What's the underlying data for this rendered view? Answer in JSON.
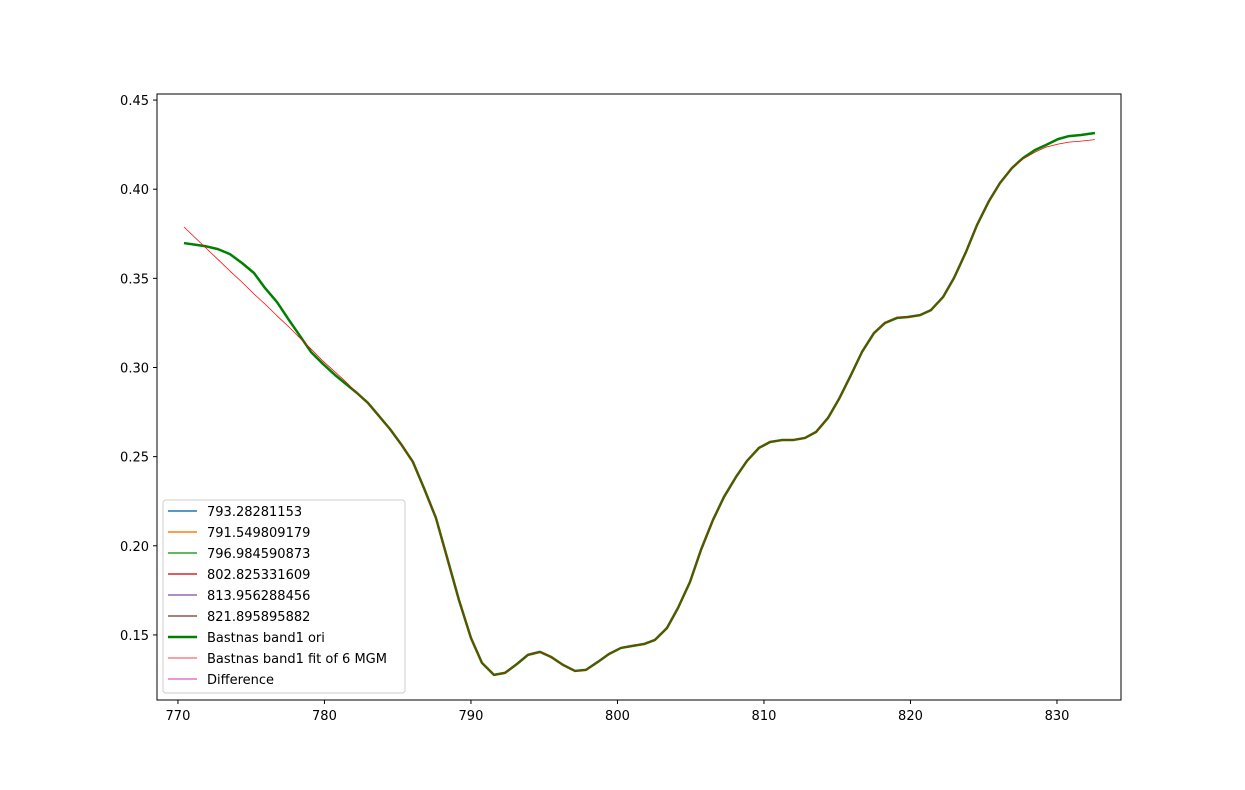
{
  "chart_data": {
    "type": "line",
    "x": [
      770.41,
      771.84,
      772.73,
      773.55,
      774.37,
      775.19,
      775.94,
      776.76,
      777.58,
      778.33,
      779.08,
      779.9,
      780.72,
      781.47,
      782.22,
      782.97,
      783.72,
      784.47,
      785.22,
      786.04,
      786.79,
      787.61,
      788.36,
      789.18,
      790.0,
      790.75,
      791.57,
      792.32,
      793.14,
      793.89,
      794.71,
      795.46,
      796.28,
      797.1,
      797.85,
      798.67,
      799.42,
      800.24,
      800.99,
      801.81,
      802.56,
      803.38,
      804.13,
      804.95,
      805.7,
      806.52,
      807.27,
      808.09,
      808.84,
      809.66,
      810.41,
      811.23,
      811.98,
      812.8,
      813.55,
      814.37,
      815.12,
      815.94,
      816.69,
      817.51,
      818.26,
      819.08,
      819.83,
      820.65,
      821.4,
      822.22,
      822.97,
      823.79,
      824.54,
      825.36,
      826.11,
      826.93,
      827.68,
      828.5,
      829.25,
      830.07,
      830.82,
      831.64,
      832.59
    ],
    "series": [
      {
        "name": "793.28281153",
        "color": "#1f77b4",
        "width": 1.5
      },
      {
        "name": "791.549809179",
        "color": "#ff7f0e",
        "width": 1.5
      },
      {
        "name": "796.984590873",
        "color": "#2ca02c",
        "width": 1.5
      },
      {
        "name": "802.825331609",
        "color": "#d62728",
        "width": 1.5
      },
      {
        "name": "813.956288456",
        "color": "#9467bd",
        "width": 1.5
      },
      {
        "name": "821.895895882",
        "color": "#8c564b",
        "width": 1.5
      },
      {
        "name": "Bastnas band1 ori",
        "color": "#008000",
        "width": 2.5,
        "values": [
          0.3698,
          0.3681,
          0.3664,
          0.3636,
          0.3586,
          0.353,
          0.3446,
          0.3367,
          0.3266,
          0.3177,
          0.3087,
          0.302,
          0.2958,
          0.2907,
          0.2857,
          0.2801,
          0.2728,
          0.2655,
          0.2571,
          0.247,
          0.2324,
          0.2156,
          0.1937,
          0.1696,
          0.1483,
          0.1343,
          0.1276,
          0.1287,
          0.1337,
          0.1388,
          0.1405,
          0.1377,
          0.1332,
          0.1298,
          0.1304,
          0.1349,
          0.1393,
          0.1427,
          0.1438,
          0.1449,
          0.1472,
          0.1539,
          0.1651,
          0.1797,
          0.1977,
          0.2145,
          0.2274,
          0.2386,
          0.2476,
          0.2549,
          0.2582,
          0.2593,
          0.2593,
          0.2605,
          0.2638,
          0.2717,
          0.2823,
          0.2958,
          0.3087,
          0.3193,
          0.325,
          0.3278,
          0.3283,
          0.3294,
          0.3322,
          0.3395,
          0.3502,
          0.3648,
          0.3799,
          0.3934,
          0.4035,
          0.4119,
          0.4175,
          0.422,
          0.4248,
          0.4281,
          0.4298,
          0.4304,
          0.4315
        ]
      },
      {
        "name": "Bastnas band1 fit of 6 MGM",
        "color": "#ff0000",
        "width": 0.75,
        "values": [
          0.3788,
          0.3676,
          0.3606,
          0.3541,
          0.3479,
          0.3412,
          0.3356,
          0.329,
          0.3227,
          0.3165,
          0.3104,
          0.3036,
          0.2975,
          0.2919,
          0.2857,
          0.2801,
          0.2728,
          0.2655,
          0.2571,
          0.247,
          0.2324,
          0.2156,
          0.1937,
          0.1696,
          0.1483,
          0.1343,
          0.1276,
          0.1287,
          0.1337,
          0.1388,
          0.1405,
          0.1377,
          0.1332,
          0.1298,
          0.1304,
          0.1349,
          0.1393,
          0.1427,
          0.1438,
          0.1449,
          0.1472,
          0.1539,
          0.1651,
          0.1797,
          0.1977,
          0.2145,
          0.2274,
          0.2386,
          0.2476,
          0.2549,
          0.2582,
          0.2593,
          0.2593,
          0.2605,
          0.2638,
          0.2717,
          0.2823,
          0.2958,
          0.3087,
          0.3193,
          0.325,
          0.3278,
          0.3283,
          0.3294,
          0.3322,
          0.3395,
          0.3502,
          0.3648,
          0.3799,
          0.3934,
          0.4035,
          0.4119,
          0.4169,
          0.4208,
          0.4236,
          0.4253,
          0.4264,
          0.427,
          0.4278
        ]
      },
      {
        "name": "Difference",
        "color": "#e377c2",
        "width": 1.5
      }
    ],
    "xlim": [
      768.57,
      834.37
    ],
    "xticks": [
      770,
      780,
      790,
      800,
      810,
      820,
      830
    ],
    "ylim": [
      0.1135,
      0.4534
    ],
    "yticks": [
      0.15,
      {
        "value": 0.2,
        "label": "0.20"
      },
      0.25,
      {
        "value": 0.3,
        "label": "0.30"
      },
      0.35,
      {
        "value": 0.4,
        "label": "0.40"
      },
      0.45
    ],
    "legend": "lower left",
    "grid": false
  }
}
